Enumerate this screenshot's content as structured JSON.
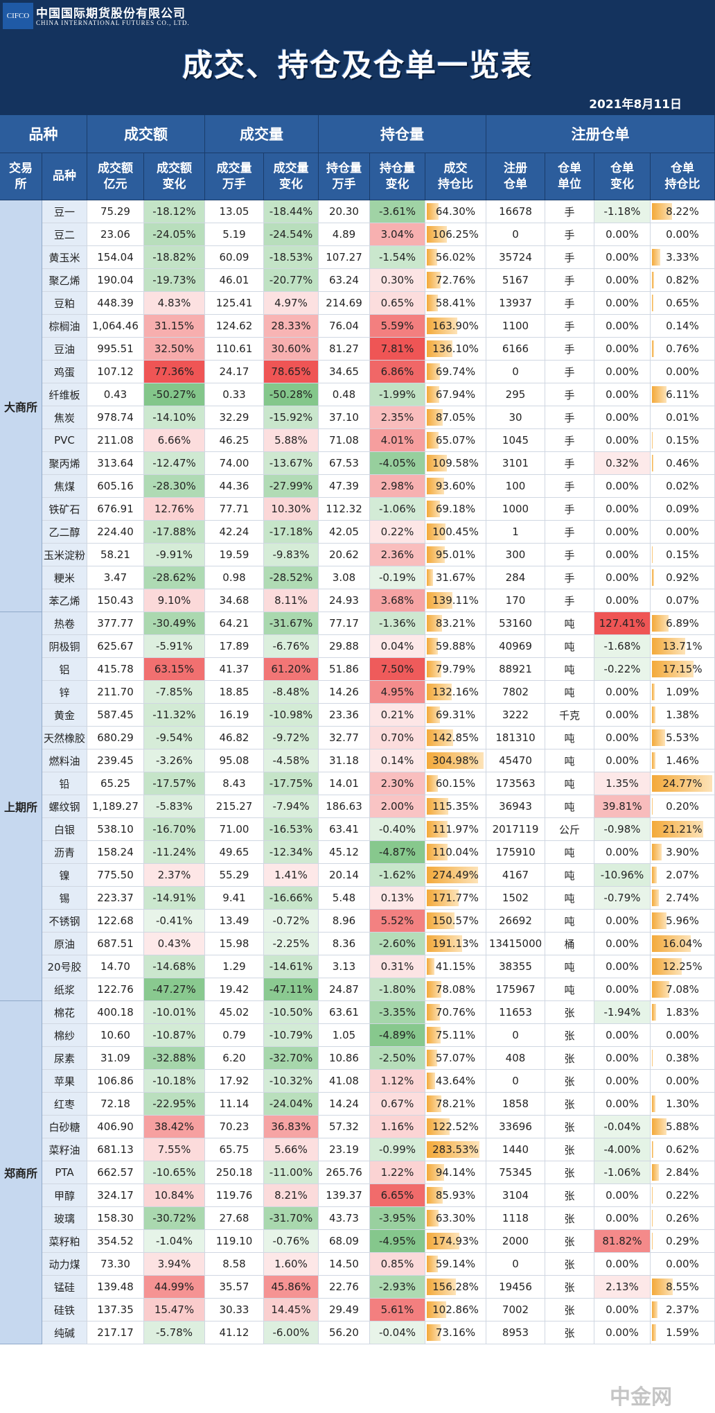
{
  "header": {
    "logo": "CIFCO",
    "company_cn": "中国国际期货股份有限公司",
    "company_en": "CHINA INTERNATIONAL FUTURES CO., LTD.",
    "title": "成交、持仓及仓单一览表",
    "date": "2021年8月11日"
  },
  "table": {
    "group_headers": [
      "品种",
      "成交额",
      "成交量",
      "持仓量",
      "注册仓单"
    ],
    "sub_headers": [
      [
        "交易",
        "所"
      ],
      [
        "品种"
      ],
      [
        "成交额",
        "亿元"
      ],
      [
        "成交额",
        "变化"
      ],
      [
        "成交量",
        "万手"
      ],
      [
        "成交量",
        "变化"
      ],
      [
        "持仓量",
        "万手"
      ],
      [
        "持仓量",
        "变化"
      ],
      [
        "成交",
        "持仓比"
      ],
      [
        "注册",
        "仓单"
      ],
      [
        "仓单",
        "单位"
      ],
      [
        "仓单",
        "变化"
      ],
      [
        "仓单",
        "持仓比"
      ]
    ],
    "sections": [
      {
        "exchange": "大商所",
        "rows": [
          [
            "豆一",
            "75.29",
            "-18.12%",
            "13.05",
            "-18.44%",
            "20.30",
            "-3.61%",
            "64.30%",
            "16678",
            "手",
            "-1.18%",
            "8.22%"
          ],
          [
            "豆二",
            "23.06",
            "-24.05%",
            "5.19",
            "-24.54%",
            "4.89",
            "3.04%",
            "106.25%",
            "0",
            "手",
            "0.00%",
            "0.00%"
          ],
          [
            "黄玉米",
            "154.04",
            "-18.82%",
            "60.09",
            "-18.53%",
            "107.27",
            "-1.54%",
            "56.02%",
            "35724",
            "手",
            "0.00%",
            "3.33%"
          ],
          [
            "聚乙烯",
            "190.04",
            "-19.73%",
            "46.01",
            "-20.77%",
            "63.24",
            "0.30%",
            "72.76%",
            "5167",
            "手",
            "0.00%",
            "0.82%"
          ],
          [
            "豆粕",
            "448.39",
            "4.83%",
            "125.41",
            "4.97%",
            "214.69",
            "0.65%",
            "58.41%",
            "13937",
            "手",
            "0.00%",
            "0.65%"
          ],
          [
            "棕榈油",
            "1,064.46",
            "31.15%",
            "124.62",
            "28.33%",
            "76.04",
            "5.59%",
            "163.90%",
            "1100",
            "手",
            "0.00%",
            "0.14%"
          ],
          [
            "豆油",
            "995.51",
            "32.50%",
            "110.61",
            "30.60%",
            "81.27",
            "7.81%",
            "136.10%",
            "6166",
            "手",
            "0.00%",
            "0.76%"
          ],
          [
            "鸡蛋",
            "107.12",
            "77.36%",
            "24.17",
            "78.65%",
            "34.65",
            "6.86%",
            "69.74%",
            "0",
            "手",
            "0.00%",
            "0.00%"
          ],
          [
            "纤维板",
            "0.43",
            "-50.27%",
            "0.33",
            "-50.28%",
            "0.48",
            "-1.99%",
            "67.94%",
            "295",
            "手",
            "0.00%",
            "6.11%"
          ],
          [
            "焦炭",
            "978.74",
            "-14.10%",
            "32.29",
            "-15.92%",
            "37.10",
            "2.35%",
            "87.05%",
            "30",
            "手",
            "0.00%",
            "0.01%"
          ],
          [
            "PVC",
            "211.08",
            "6.66%",
            "46.25",
            "5.88%",
            "71.08",
            "4.01%",
            "65.07%",
            "1045",
            "手",
            "0.00%",
            "0.15%"
          ],
          [
            "聚丙烯",
            "313.64",
            "-12.47%",
            "74.00",
            "-13.67%",
            "67.53",
            "-4.05%",
            "109.58%",
            "3101",
            "手",
            "0.32%",
            "0.46%"
          ],
          [
            "焦煤",
            "605.16",
            "-28.30%",
            "44.36",
            "-27.99%",
            "47.39",
            "2.98%",
            "93.60%",
            "100",
            "手",
            "0.00%",
            "0.02%"
          ],
          [
            "铁矿石",
            "676.91",
            "12.76%",
            "77.71",
            "10.30%",
            "112.32",
            "-1.06%",
            "69.18%",
            "1000",
            "手",
            "0.00%",
            "0.09%"
          ],
          [
            "乙二醇",
            "224.40",
            "-17.88%",
            "42.24",
            "-17.18%",
            "42.05",
            "0.22%",
            "100.45%",
            "1",
            "手",
            "0.00%",
            "0.00%"
          ],
          [
            "玉米淀粉",
            "58.21",
            "-9.91%",
            "19.59",
            "-9.83%",
            "20.62",
            "2.36%",
            "95.01%",
            "300",
            "手",
            "0.00%",
            "0.15%"
          ],
          [
            "粳米",
            "3.47",
            "-28.62%",
            "0.98",
            "-28.52%",
            "3.08",
            "-0.19%",
            "31.67%",
            "284",
            "手",
            "0.00%",
            "0.92%"
          ],
          [
            "苯乙烯",
            "150.43",
            "9.10%",
            "34.68",
            "8.11%",
            "24.93",
            "3.68%",
            "139.11%",
            "170",
            "手",
            "0.00%",
            "0.07%"
          ]
        ]
      },
      {
        "exchange": "上期所",
        "rows": [
          [
            "热卷",
            "377.77",
            "-30.49%",
            "64.21",
            "-31.67%",
            "77.17",
            "-1.36%",
            "83.21%",
            "53160",
            "吨",
            "127.41%",
            "6.89%"
          ],
          [
            "阴极铜",
            "625.67",
            "-5.91%",
            "17.89",
            "-6.76%",
            "29.88",
            "0.04%",
            "59.88%",
            "40969",
            "吨",
            "-1.68%",
            "13.71%"
          ],
          [
            "铝",
            "415.78",
            "63.15%",
            "41.37",
            "61.20%",
            "51.86",
            "7.50%",
            "79.79%",
            "88921",
            "吨",
            "-0.22%",
            "17.15%"
          ],
          [
            "锌",
            "211.70",
            "-7.85%",
            "18.85",
            "-8.48%",
            "14.26",
            "4.95%",
            "132.16%",
            "7802",
            "吨",
            "0.00%",
            "1.09%"
          ],
          [
            "黄金",
            "587.45",
            "-11.32%",
            "16.19",
            "-10.98%",
            "23.36",
            "0.21%",
            "69.31%",
            "3222",
            "千克",
            "0.00%",
            "1.38%"
          ],
          [
            "天然橡胶",
            "680.29",
            "-9.54%",
            "46.82",
            "-9.72%",
            "32.77",
            "0.70%",
            "142.85%",
            "181310",
            "吨",
            "0.00%",
            "5.53%"
          ],
          [
            "燃料油",
            "239.45",
            "-3.26%",
            "95.08",
            "-4.58%",
            "31.18",
            "0.14%",
            "304.98%",
            "45470",
            "吨",
            "0.00%",
            "1.46%"
          ],
          [
            "铅",
            "65.25",
            "-17.57%",
            "8.43",
            "-17.75%",
            "14.01",
            "2.30%",
            "60.15%",
            "173563",
            "吨",
            "1.35%",
            "24.77%"
          ],
          [
            "螺纹钢",
            "1,189.27",
            "-5.83%",
            "215.27",
            "-7.94%",
            "186.63",
            "2.00%",
            "115.35%",
            "36943",
            "吨",
            "39.81%",
            "0.20%"
          ],
          [
            "白银",
            "538.10",
            "-16.70%",
            "71.00",
            "-16.53%",
            "63.41",
            "-0.40%",
            "111.97%",
            "2017119",
            "公斤",
            "-0.98%",
            "21.21%"
          ],
          [
            "沥青",
            "158.24",
            "-11.24%",
            "49.65",
            "-12.34%",
            "45.12",
            "-4.87%",
            "110.04%",
            "175910",
            "吨",
            "0.00%",
            "3.90%"
          ],
          [
            "镍",
            "775.50",
            "2.37%",
            "55.29",
            "1.41%",
            "20.14",
            "-1.62%",
            "274.49%",
            "4167",
            "吨",
            "-10.96%",
            "2.07%"
          ],
          [
            "锡",
            "223.37",
            "-14.91%",
            "9.41",
            "-16.66%",
            "5.48",
            "0.13%",
            "171.77%",
            "1502",
            "吨",
            "-0.79%",
            "2.74%"
          ],
          [
            "不锈钢",
            "122.68",
            "-0.41%",
            "13.49",
            "-0.72%",
            "8.96",
            "5.52%",
            "150.57%",
            "26692",
            "吨",
            "0.00%",
            "5.96%"
          ],
          [
            "原油",
            "687.51",
            "0.43%",
            "15.98",
            "-2.25%",
            "8.36",
            "-2.60%",
            "191.13%",
            "13415000",
            "桶",
            "0.00%",
            "16.04%"
          ],
          [
            "20号胶",
            "14.70",
            "-14.68%",
            "1.29",
            "-14.61%",
            "3.13",
            "0.31%",
            "41.15%",
            "38355",
            "吨",
            "0.00%",
            "12.25%"
          ],
          [
            "纸浆",
            "122.76",
            "-47.27%",
            "19.42",
            "-47.11%",
            "24.87",
            "-1.80%",
            "78.08%",
            "175967",
            "吨",
            "0.00%",
            "7.08%"
          ]
        ]
      },
      {
        "exchange": "郑商所",
        "rows": [
          [
            "棉花",
            "400.18",
            "-10.01%",
            "45.02",
            "-10.50%",
            "63.61",
            "-3.35%",
            "70.76%",
            "11653",
            "张",
            "-1.94%",
            "1.83%"
          ],
          [
            "棉纱",
            "10.60",
            "-10.87%",
            "0.79",
            "-10.79%",
            "1.05",
            "-4.89%",
            "75.11%",
            "0",
            "张",
            "0.00%",
            "0.00%"
          ],
          [
            "尿素",
            "31.09",
            "-32.88%",
            "6.20",
            "-32.70%",
            "10.86",
            "-2.50%",
            "57.07%",
            "408",
            "张",
            "0.00%",
            "0.38%"
          ],
          [
            "苹果",
            "106.86",
            "-10.18%",
            "17.92",
            "-10.32%",
            "41.08",
            "1.12%",
            "43.64%",
            "0",
            "张",
            "0.00%",
            "0.00%"
          ],
          [
            "红枣",
            "72.18",
            "-22.95%",
            "11.14",
            "-24.04%",
            "14.24",
            "0.67%",
            "78.21%",
            "1858",
            "张",
            "0.00%",
            "1.30%"
          ],
          [
            "白砂糖",
            "406.90",
            "38.42%",
            "70.23",
            "36.83%",
            "57.32",
            "1.16%",
            "122.52%",
            "33696",
            "张",
            "-0.04%",
            "5.88%"
          ],
          [
            "菜籽油",
            "681.13",
            "7.55%",
            "65.75",
            "5.66%",
            "23.19",
            "-0.99%",
            "283.53%",
            "1440",
            "张",
            "-4.00%",
            "0.62%"
          ],
          [
            "PTA",
            "662.57",
            "-10.65%",
            "250.18",
            "-11.00%",
            "265.76",
            "1.22%",
            "94.14%",
            "75345",
            "张",
            "-1.06%",
            "2.84%"
          ],
          [
            "甲醇",
            "324.17",
            "10.84%",
            "119.76",
            "8.21%",
            "139.37",
            "6.65%",
            "85.93%",
            "3104",
            "张",
            "0.00%",
            "0.22%"
          ],
          [
            "玻璃",
            "158.30",
            "-30.72%",
            "27.68",
            "-31.70%",
            "43.73",
            "-3.95%",
            "63.30%",
            "1118",
            "张",
            "0.00%",
            "0.26%"
          ],
          [
            "菜籽粕",
            "354.52",
            "-1.04%",
            "119.10",
            "-0.76%",
            "68.09",
            "-4.95%",
            "174.93%",
            "2000",
            "张",
            "81.82%",
            "0.29%"
          ],
          [
            "动力煤",
            "73.30",
            "3.94%",
            "8.58",
            "1.60%",
            "14.50",
            "0.85%",
            "59.14%",
            "0",
            "张",
            "0.00%",
            "0.00%"
          ],
          [
            "锰硅",
            "139.48",
            "44.99%",
            "35.57",
            "45.86%",
            "22.76",
            "-2.93%",
            "156.28%",
            "19456",
            "张",
            "2.13%",
            "8.55%"
          ],
          [
            "硅铁",
            "137.35",
            "15.47%",
            "30.33",
            "14.45%",
            "29.49",
            "5.61%",
            "102.86%",
            "7002",
            "张",
            "0.00%",
            "2.37%"
          ],
          [
            "纯碱",
            "217.17",
            "-5.78%",
            "41.12",
            "-6.00%",
            "56.20",
            "-0.04%",
            "73.16%",
            "8953",
            "张",
            "0.00%",
            "1.59%"
          ]
        ]
      }
    ]
  },
  "watermark": "中金网"
}
